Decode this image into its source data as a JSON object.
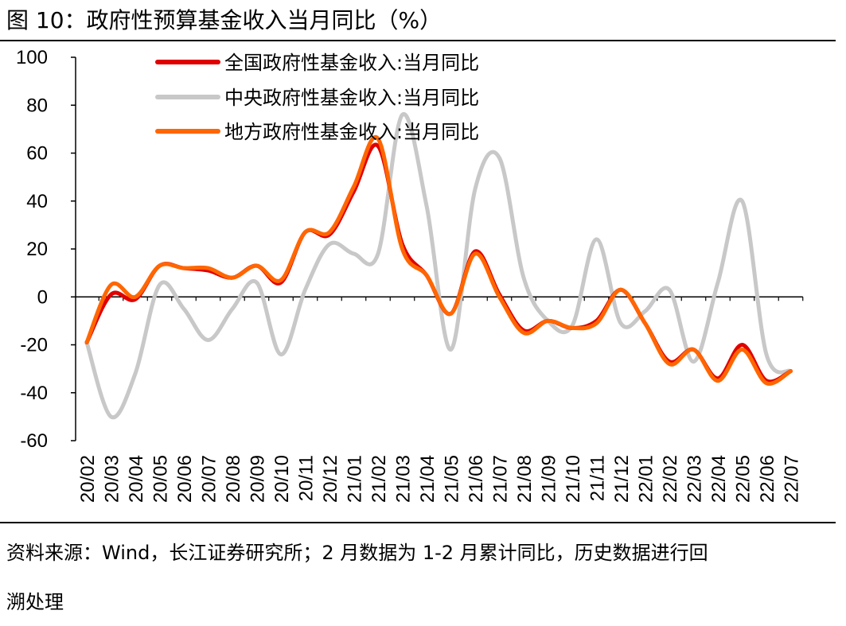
{
  "header": {
    "title": "图 10：政府性预算基金收入当月同比（%）"
  },
  "footer": {
    "source_line1": "资料来源：Wind，长江证券研究所；2 月数据为 1-2 月累计同比，历史数据进行回",
    "source_line2": "溯处理"
  },
  "chart_data": {
    "type": "line",
    "ylim": [
      -60,
      100
    ],
    "yticks": [
      -60,
      -40,
      -20,
      0,
      20,
      40,
      60,
      80,
      100
    ],
    "grid": false,
    "legend_position": "top-center",
    "categories": [
      "20/02",
      "20/03",
      "20/04",
      "20/05",
      "20/06",
      "20/07",
      "20/08",
      "20/09",
      "20/10",
      "20/11",
      "20/12",
      "21/01",
      "21/02",
      "21/03",
      "21/04",
      "21/05",
      "21/06",
      "21/07",
      "21/08",
      "21/09",
      "21/10",
      "21/11",
      "21/12",
      "22/01",
      "22/02",
      "22/03",
      "22/04",
      "22/05",
      "22/06",
      "22/07"
    ],
    "series": [
      {
        "name": "全国政府性基金收入:当月同比",
        "color": "#e00000",
        "values": [
          -19,
          1,
          -1,
          13,
          12,
          11,
          8,
          13,
          6,
          27,
          26,
          44,
          63,
          22,
          9,
          -7,
          19,
          1,
          -14,
          -10,
          -13,
          -10,
          3,
          -11,
          -27,
          -22,
          -34,
          -20,
          -35,
          -31
        ]
      },
      {
        "name": "中央政府性基金收入:当月同比",
        "color": "#c8c8c8",
        "values": [
          -19,
          -50,
          -32,
          5,
          -5,
          -18,
          -5,
          6,
          -24,
          3,
          22,
          18,
          18,
          76,
          38,
          -22,
          45,
          58,
          8,
          -10,
          -12,
          24,
          -11,
          -6,
          3,
          -27,
          6,
          40,
          -24,
          -31
        ]
      },
      {
        "name": "地方政府性基金收入:当月同比",
        "color": "#ff6600",
        "values": [
          -19,
          5,
          0,
          13,
          12,
          12,
          8,
          13,
          7,
          27,
          27,
          46,
          66,
          20,
          9,
          -7,
          18,
          0,
          -15,
          -10,
          -13,
          -11,
          3,
          -11,
          -28,
          -22,
          -35,
          -22,
          -36,
          -31
        ]
      }
    ]
  }
}
